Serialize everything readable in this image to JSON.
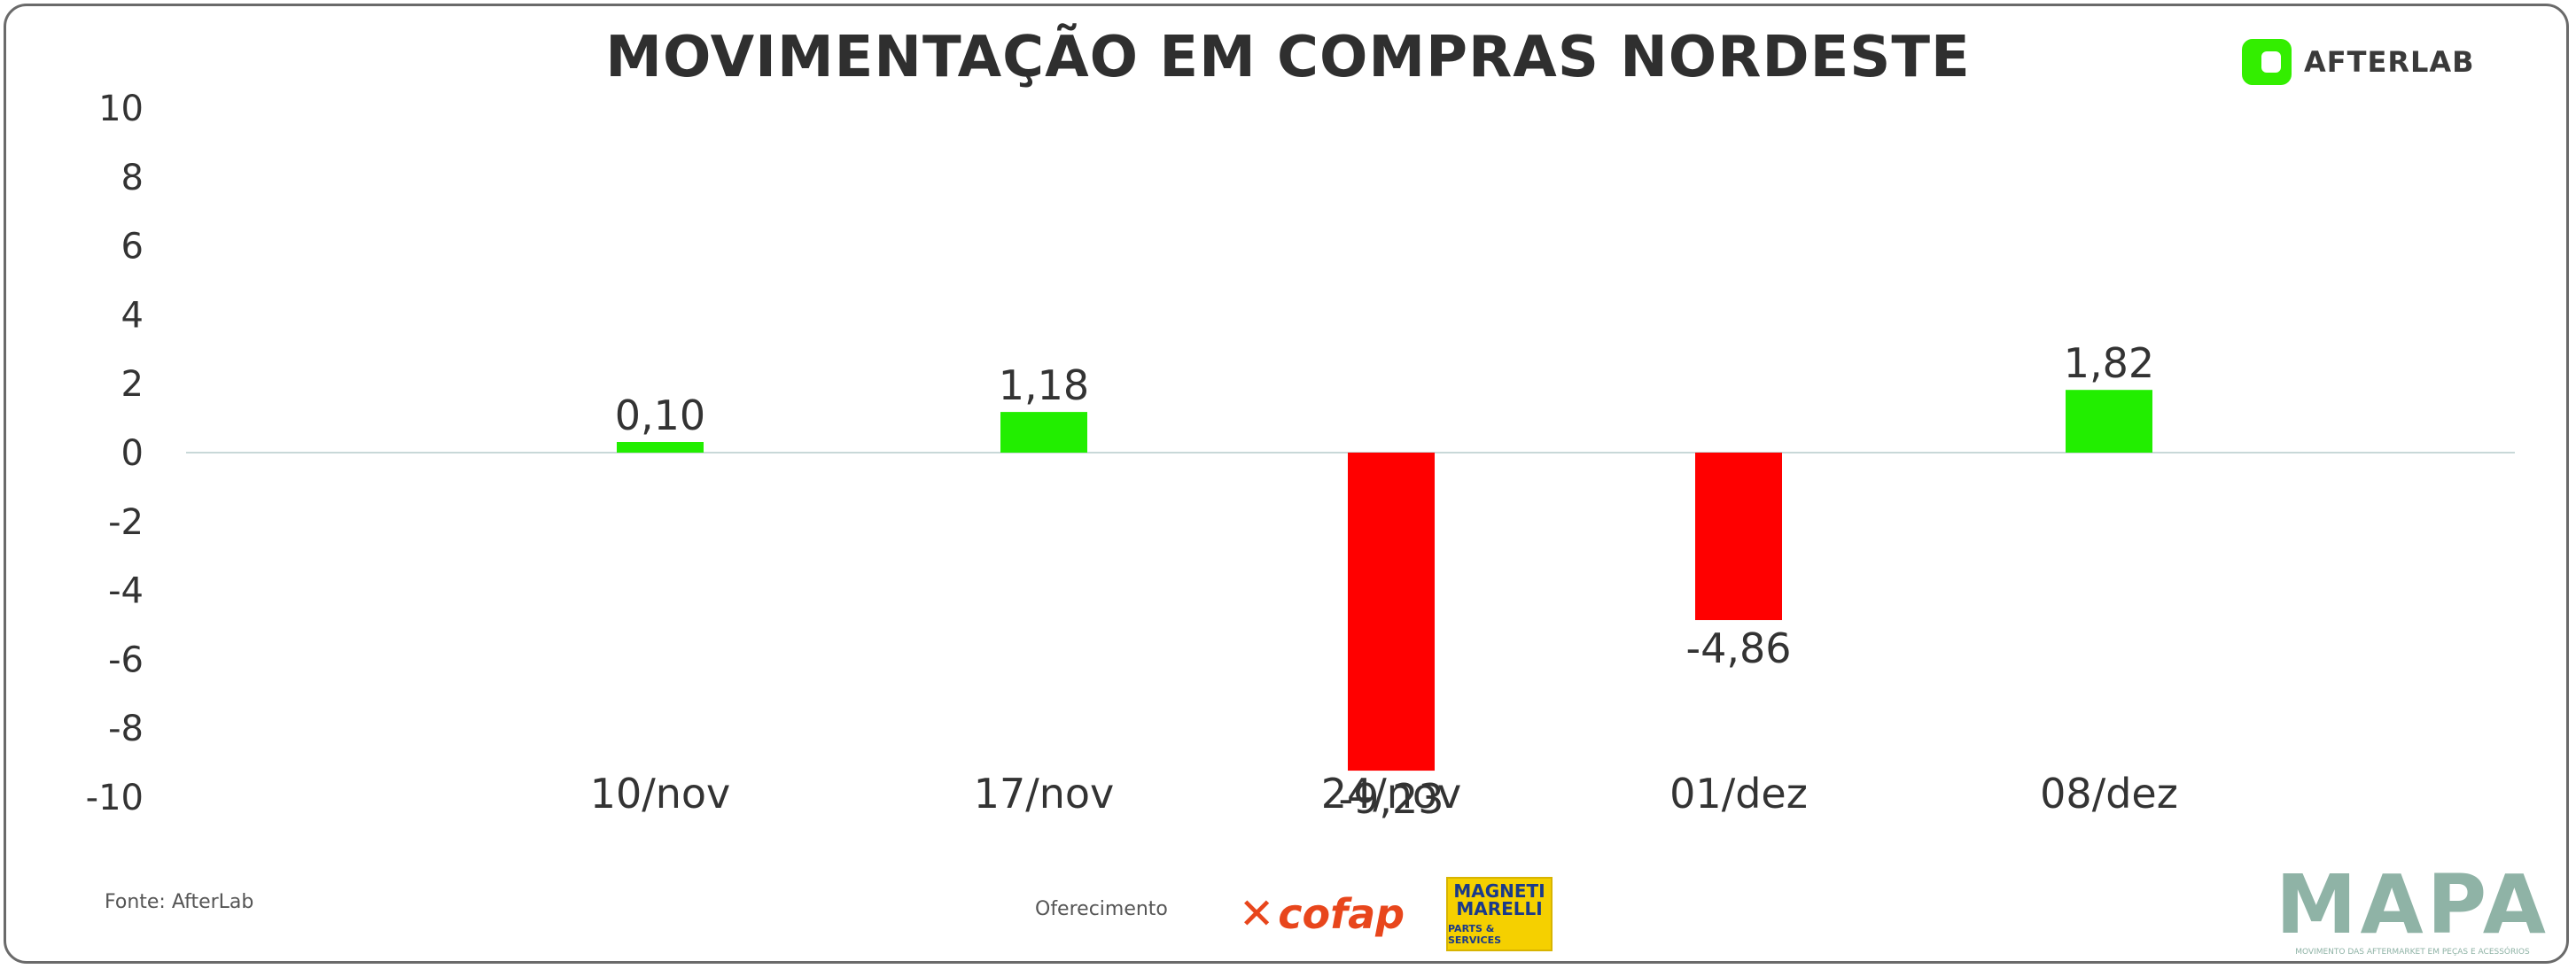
{
  "title": "MOVIMENTAÇÃO EM COMPRAS NORDESTE",
  "brand": {
    "name": "AFTERLAB",
    "icon": "afterlab-logo-icon"
  },
  "source": "Fonte: AfterLab",
  "sponsor_label": "Oferecimento",
  "sponsors": [
    {
      "name": "cofap",
      "icon": "cofap-logo"
    },
    {
      "name": "MAGNETI MARELLI",
      "sub": "PARTS & SERVICES",
      "icon": "magneti-marelli-logo"
    }
  ],
  "footer_logo": {
    "word": "MAPA",
    "tagline": "MOVIMENTO DAS AFTERMARKET EM PEÇAS E ACESSÓRIOS"
  },
  "colors": {
    "positive": "#22ee00",
    "negative": "#ff0000",
    "zero_line": "#c8d8d8"
  },
  "chart_data": {
    "type": "bar",
    "title": "MOVIMENTAÇÃO EM COMPRAS NORDESTE",
    "categories": [
      "10/nov",
      "17/nov",
      "24/nov",
      "01/dez",
      "08/dez"
    ],
    "values": [
      0.1,
      1.18,
      -9.23,
      -4.86,
      1.82
    ],
    "value_labels": [
      "0,10",
      "1,18",
      "-9,23",
      "-4,86",
      "1,82"
    ],
    "ylim": [
      -10,
      10
    ],
    "yticks": [
      10,
      8,
      6,
      4,
      2,
      0,
      -2,
      -4,
      -6,
      -8,
      -10
    ],
    "grid": false,
    "legend": false
  }
}
